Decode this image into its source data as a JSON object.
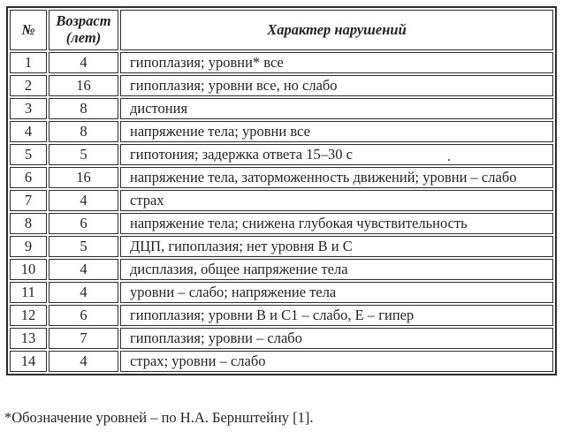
{
  "table": {
    "header": {
      "col_num": "№",
      "col_age_line1": "Возраст",
      "col_age_line2": "(лет)",
      "col_desc": "Характер нарушений"
    },
    "rows": [
      {
        "num": "1",
        "age": "4",
        "desc": "гипоплазия; уровни* все"
      },
      {
        "num": "2",
        "age": "16",
        "desc": "гипоплазия; уровни все, но слабо"
      },
      {
        "num": "3",
        "age": "8",
        "desc": "дистония"
      },
      {
        "num": "4",
        "age": "8",
        "desc": "напряжение тела; уровни все"
      },
      {
        "num": "5",
        "age": "5",
        "desc": "гипотония; задержка ответа 15–30 с"
      },
      {
        "num": "6",
        "age": "16",
        "desc": "напряжение тела, заторможенность движений; уровни – слабо"
      },
      {
        "num": "7",
        "age": "4",
        "desc": "страх"
      },
      {
        "num": "8",
        "age": "6",
        "desc": "напряжение тела; снижена глубокая чувствительность"
      },
      {
        "num": "9",
        "age": "5",
        "desc": "ДЦП, гипоплазия; нет уровня B и C"
      },
      {
        "num": "10",
        "age": "4",
        "desc": "дисплазия, общее напряжение тела"
      },
      {
        "num": "11",
        "age": "4",
        "desc": "уровни – слабо; напряжение тела"
      },
      {
        "num": "12",
        "age": "6",
        "desc": "гипоплазия; уровни B и C1 – слабо, E – гипер"
      },
      {
        "num": "13",
        "age": "7",
        "desc": "гипоплазия; уровни – слабо"
      },
      {
        "num": "14",
        "age": "4",
        "desc": "страх; уровни – слабо"
      }
    ]
  },
  "footnote": "*Обозначение уровней – по Н.А. Бернштейну [1].",
  "colors": {
    "text": "#232329",
    "border": "#2d2d2d",
    "background": "#ffffff"
  }
}
